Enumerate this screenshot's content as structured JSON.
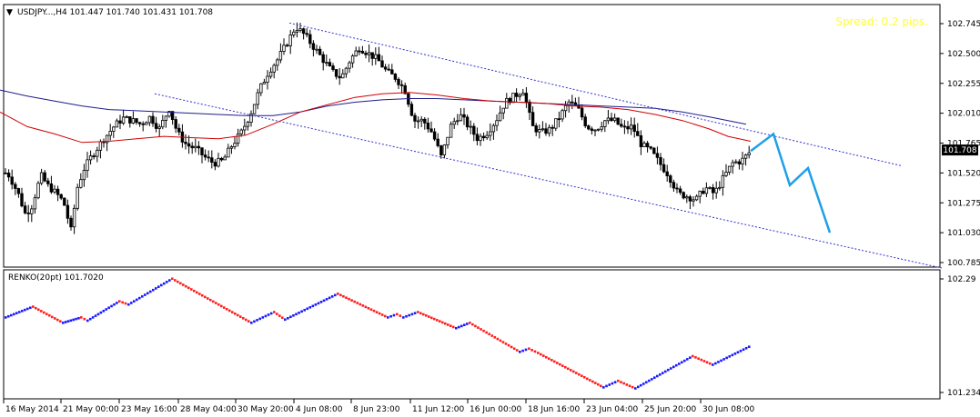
{
  "main_chart": {
    "symbol_header": "USDJPY...,H4  101.447 101.740 101.431 101.708",
    "spread_text": "Spread: 0.2 pips.",
    "current_price_label": "101.708",
    "price_axis_labels": [
      "102.745",
      "102.500",
      "102.255",
      "102.010",
      "101.765",
      "101.520",
      "101.275",
      "101.030",
      "100.785"
    ]
  },
  "indicator_panel": {
    "title": "RENKO(20pt) 101.7020",
    "axis_labels": [
      "102.29",
      "101.234"
    ]
  },
  "time_axis_labels": [
    "16 May 2014",
    "21 May 00:00",
    "23 May 16:00",
    "28 May 04:00",
    "30 May 20:00",
    "4 Jun 08:00",
    "8 Jun 23:00",
    "11 Jun 12:00",
    "16 Jun 00:00",
    "18 Jun 16:00",
    "23 Jun 04:00",
    "25 Jun 20:00",
    "30 Jun 08:00"
  ],
  "colors": {
    "candle": "#000000",
    "ma_fast": "#d00000",
    "ma_slow": "#1c1c8c",
    "channel": "#3333cc",
    "forecast": "#1ea0e6",
    "renko_up": "#1a1aff",
    "renko_down": "#ff2020",
    "spread_text": "#ffff33"
  },
  "chart_data": [
    {
      "type": "candlestick",
      "title": "USDJPY...,H4  101.447 101.740 101.431 101.708",
      "ylim": [
        100.785,
        102.745
      ],
      "y_ticks": [
        102.745,
        102.5,
        102.255,
        102.01,
        101.765,
        101.52,
        101.275,
        101.03,
        100.785
      ],
      "x_ticks": [
        "16 May 2014",
        "21 May 00:00",
        "23 May 16:00",
        "28 May 04:00",
        "30 May 20:00",
        "4 Jun 08:00",
        "8 Jun 23:00",
        "11 Jun 12:00",
        "16 Jun 00:00",
        "18 Jun 16:00",
        "23 Jun 04:00",
        "25 Jun 20:00",
        "30 Jun 08:00"
      ],
      "last_price": 101.708,
      "close_path": [
        [
          0,
          101.55
        ],
        [
          10,
          101.5
        ],
        [
          20,
          101.35
        ],
        [
          28,
          101.18
        ],
        [
          35,
          101.25
        ],
        [
          45,
          101.5
        ],
        [
          52,
          101.42
        ],
        [
          62,
          101.35
        ],
        [
          70,
          101.28
        ],
        [
          78,
          101.05
        ],
        [
          85,
          101.4
        ],
        [
          92,
          101.55
        ],
        [
          100,
          101.65
        ],
        [
          112,
          101.78
        ],
        [
          125,
          101.9
        ],
        [
          135,
          101.97
        ],
        [
          145,
          101.95
        ],
        [
          155,
          101.92
        ],
        [
          165,
          101.98
        ],
        [
          175,
          101.88
        ],
        [
          186,
          102.05
        ],
        [
          195,
          101.85
        ],
        [
          205,
          101.75
        ],
        [
          215,
          101.72
        ],
        [
          225,
          101.65
        ],
        [
          235,
          101.6
        ],
        [
          245,
          101.62
        ],
        [
          255,
          101.75
        ],
        [
          265,
          101.85
        ],
        [
          275,
          102.0
        ],
        [
          285,
          102.2
        ],
        [
          295,
          102.35
        ],
        [
          305,
          102.45
        ],
        [
          315,
          102.58
        ],
        [
          325,
          102.72
        ],
        [
          335,
          102.65
        ],
        [
          345,
          102.55
        ],
        [
          355,
          102.45
        ],
        [
          365,
          102.35
        ],
        [
          375,
          102.3
        ],
        [
          385,
          102.45
        ],
        [
          395,
          102.55
        ],
        [
          405,
          102.5
        ],
        [
          415,
          102.45
        ],
        [
          425,
          102.35
        ],
        [
          435,
          102.3
        ],
        [
          445,
          102.2
        ],
        [
          455,
          101.95
        ],
        [
          465,
          101.95
        ],
        [
          475,
          101.85
        ],
        [
          485,
          101.65
        ],
        [
          495,
          101.9
        ],
        [
          505,
          102.0
        ],
        [
          515,
          101.9
        ],
        [
          525,
          101.8
        ],
        [
          535,
          101.85
        ],
        [
          545,
          101.95
        ],
        [
          555,
          102.1
        ],
        [
          565,
          102.15
        ],
        [
          575,
          102.2
        ],
        [
          585,
          101.9
        ],
        [
          595,
          101.85
        ],
        [
          605,
          101.88
        ],
        [
          615,
          101.98
        ],
        [
          625,
          102.1
        ],
        [
          635,
          102.05
        ],
        [
          645,
          101.9
        ],
        [
          655,
          101.88
        ],
        [
          665,
          101.95
        ],
        [
          675,
          101.95
        ],
        [
          685,
          101.88
        ],
        [
          695,
          101.9
        ],
        [
          705,
          101.75
        ],
        [
          715,
          101.7
        ],
        [
          725,
          101.6
        ],
        [
          735,
          101.5
        ],
        [
          745,
          101.35
        ],
        [
          755,
          101.33
        ],
        [
          765,
          101.3
        ],
        [
          775,
          101.4
        ],
        [
          785,
          101.35
        ],
        [
          795,
          101.48
        ],
        [
          805,
          101.6
        ],
        [
          815,
          101.62
        ],
        [
          825,
          101.7
        ]
      ],
      "moving_average_fast": [
        [
          0,
          102.02
        ],
        [
          30,
          101.9
        ],
        [
          60,
          101.84
        ],
        [
          90,
          101.77
        ],
        [
          120,
          101.78
        ],
        [
          150,
          101.8
        ],
        [
          180,
          101.82
        ],
        [
          210,
          101.81
        ],
        [
          240,
          101.8
        ],
        [
          270,
          101.83
        ],
        [
          300,
          101.92
        ],
        [
          330,
          102.02
        ],
        [
          360,
          102.08
        ],
        [
          390,
          102.14
        ],
        [
          420,
          102.17
        ],
        [
          450,
          102.18
        ],
        [
          480,
          102.16
        ],
        [
          510,
          102.13
        ],
        [
          540,
          102.11
        ],
        [
          570,
          102.1
        ],
        [
          600,
          102.09
        ],
        [
          630,
          102.07
        ],
        [
          660,
          102.06
        ],
        [
          690,
          102.04
        ],
        [
          720,
          102.0
        ],
        [
          750,
          101.95
        ],
        [
          780,
          101.88
        ],
        [
          800,
          101.82
        ],
        [
          825,
          101.78
        ]
      ],
      "moving_average_slow": [
        [
          0,
          102.2
        ],
        [
          30,
          102.15
        ],
        [
          60,
          102.11
        ],
        [
          90,
          102.07
        ],
        [
          120,
          102.04
        ],
        [
          150,
          102.03
        ],
        [
          180,
          102.02
        ],
        [
          210,
          102.01
        ],
        [
          240,
          102.0
        ],
        [
          270,
          101.99
        ],
        [
          300,
          101.99
        ],
        [
          330,
          102.02
        ],
        [
          360,
          102.07
        ],
        [
          390,
          102.1
        ],
        [
          420,
          102.12
        ],
        [
          450,
          102.13
        ],
        [
          480,
          102.13
        ],
        [
          510,
          102.12
        ],
        [
          540,
          102.11
        ],
        [
          570,
          102.1
        ],
        [
          600,
          102.09
        ],
        [
          630,
          102.08
        ],
        [
          660,
          102.07
        ],
        [
          690,
          102.06
        ],
        [
          720,
          102.05
        ],
        [
          750,
          102.02
        ],
        [
          780,
          101.98
        ],
        [
          800,
          101.95
        ],
        [
          820,
          101.92
        ]
      ],
      "channel_upper": [
        [
          318,
          102.75
        ],
        [
          990,
          101.58
        ]
      ],
      "channel_lower": [
        [
          170,
          102.17
        ],
        [
          1035,
          100.74
        ]
      ],
      "forecast_path": [
        [
          825,
          101.7
        ],
        [
          850,
          101.84
        ],
        [
          868,
          101.42
        ],
        [
          888,
          101.56
        ],
        [
          912,
          101.03
        ]
      ]
    },
    {
      "type": "line",
      "title": "RENKO(20pt) 101.7020",
      "brick_size": 0.2,
      "ylim": [
        101.234,
        102.29
      ],
      "y_ticks": [
        102.29,
        101.234
      ],
      "renko_path": [
        [
          5,
          101.93
        ],
        [
          35,
          102.03
        ],
        [
          68,
          101.88
        ],
        [
          88,
          101.93
        ],
        [
          95,
          101.9
        ],
        [
          130,
          102.08
        ],
        [
          140,
          102.05
        ],
        [
          188,
          102.29
        ],
        [
          275,
          101.88
        ],
        [
          300,
          101.98
        ],
        [
          312,
          101.91
        ],
        [
          370,
          102.15
        ],
        [
          425,
          101.93
        ],
        [
          435,
          101.96
        ],
        [
          442,
          101.93
        ],
        [
          458,
          101.98
        ],
        [
          500,
          101.83
        ],
        [
          515,
          101.88
        ],
        [
          570,
          101.61
        ],
        [
          580,
          101.64
        ],
        [
          590,
          101.6
        ],
        [
          662,
          101.28
        ],
        [
          678,
          101.34
        ],
        [
          697,
          101.27
        ],
        [
          760,
          101.57
        ],
        [
          782,
          101.49
        ],
        [
          825,
          101.67
        ]
      ]
    }
  ]
}
